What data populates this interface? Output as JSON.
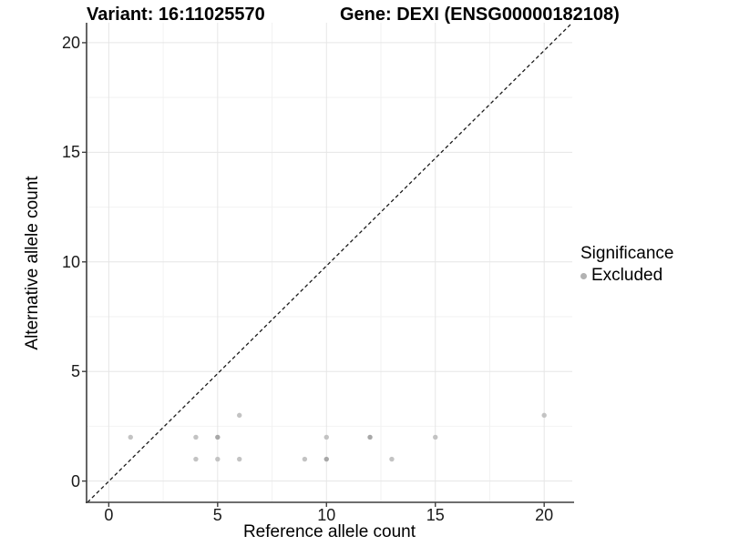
{
  "chart_data": {
    "type": "scatter",
    "title_left": "Variant: 16:11025570",
    "title_right": "Gene: DEXI (ENSG00000182108)",
    "xlabel": "Reference allele count",
    "ylabel": "Alternative allele count",
    "xlim": [
      -1.02,
      21.29
    ],
    "ylim": [
      -0.97,
      20.91
    ],
    "x_major_ticks": [
      0,
      5,
      10,
      15,
      20
    ],
    "y_major_ticks": [
      0,
      5,
      10,
      15,
      20
    ],
    "x_minor_ticks": [
      2.5,
      7.5,
      12.5,
      17.5
    ],
    "y_minor_ticks": [
      2.5,
      7.5,
      12.5,
      17.5
    ],
    "grid": "major+minor",
    "identity_line": {
      "style": "dashed",
      "slope": 1,
      "intercept": 0
    },
    "points": [
      {
        "x": 1,
        "y": 2,
        "n": 1
      },
      {
        "x": 4,
        "y": 1,
        "n": 1
      },
      {
        "x": 4,
        "y": 2,
        "n": 1
      },
      {
        "x": 5,
        "y": 1,
        "n": 1
      },
      {
        "x": 5,
        "y": 2,
        "n": 2
      },
      {
        "x": 6,
        "y": 1,
        "n": 1
      },
      {
        "x": 6,
        "y": 3,
        "n": 1
      },
      {
        "x": 9,
        "y": 1,
        "n": 1
      },
      {
        "x": 10,
        "y": 1,
        "n": 2
      },
      {
        "x": 10,
        "y": 2,
        "n": 1
      },
      {
        "x": 12,
        "y": 2,
        "n": 2
      },
      {
        "x": 13,
        "y": 1,
        "n": 1
      },
      {
        "x": 15,
        "y": 2,
        "n": 1
      },
      {
        "x": 20,
        "y": 3,
        "n": 1
      }
    ],
    "legend": {
      "title": "Significance",
      "position": "right",
      "entries": [
        {
          "label": "Excluded",
          "color": "#b2b2b2"
        }
      ]
    },
    "colors": {
      "point_single": "#c3c3c3",
      "point_overlap": "#a8a8a8",
      "grid_major": "#e6e6e6",
      "grid_minor": "#f2f2f2",
      "axis_line": "#3f3f3f",
      "identity_line": "#1a1a1a",
      "background": "#ffffff"
    }
  }
}
